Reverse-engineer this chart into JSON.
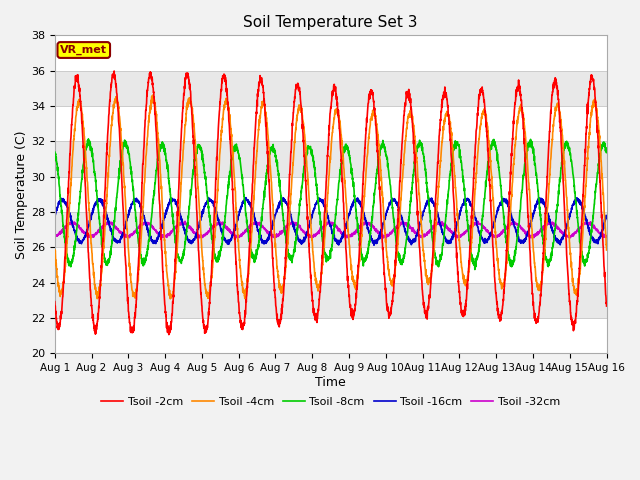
{
  "title": "Soil Temperature Set 3",
  "xlabel": "Time",
  "ylabel": "Soil Temperature (C)",
  "ylim": [
    20,
    38
  ],
  "background_color": "#e8e8e8",
  "grid_color": "#d8d8d8",
  "band_color_light": "#ebebeb",
  "band_color_dark": "#d8d8d8",
  "annotation_text": "VR_met",
  "annotation_bg": "#ffff00",
  "annotation_border": "#8b0000",
  "legend_entries": [
    "Tsoil -2cm",
    "Tsoil -4cm",
    "Tsoil -8cm",
    "Tsoil -16cm",
    "Tsoil -32cm"
  ],
  "line_colors": [
    "#ff0000",
    "#ff8800",
    "#00cc00",
    "#0000cc",
    "#cc00cc"
  ],
  "line_widths": [
    1.2,
    1.2,
    1.2,
    1.2,
    1.2
  ],
  "yticks": [
    20,
    22,
    24,
    26,
    28,
    30,
    32,
    34,
    36,
    38
  ],
  "xtick_labels": [
    "Aug 1",
    "Aug 2",
    "Aug 3",
    "Aug 4",
    "Aug 5",
    "Aug 6",
    "Aug 7",
    "Aug 8",
    "Aug 9",
    "Aug 10",
    "Aug 11",
    "Aug 12",
    "Aug 13",
    "Aug 14",
    "Aug 15",
    "Aug 16"
  ]
}
